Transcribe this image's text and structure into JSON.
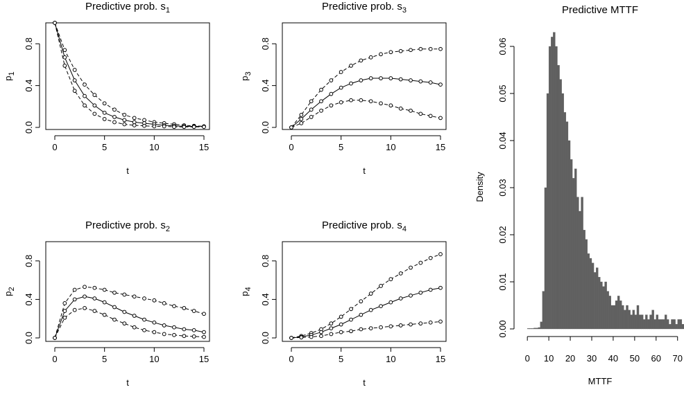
{
  "chart_data": [
    {
      "type": "line",
      "title": "Predictive prob. s",
      "title_subscript": "1",
      "xlabel": "t",
      "ylabel": "p",
      "ylabel_subscript": "1",
      "xlim": [
        0,
        15
      ],
      "ylim": [
        0,
        1
      ],
      "x_ticks": [
        "0",
        "5",
        "10",
        "15"
      ],
      "y_ticks": [
        "0.0",
        "0.4",
        "0.8"
      ],
      "x": [
        0,
        1,
        2,
        3,
        4,
        5,
        6,
        7,
        8,
        9,
        10,
        11,
        12,
        13,
        14,
        15
      ],
      "series": [
        {
          "style": "dashed",
          "values": [
            1.0,
            0.74,
            0.55,
            0.41,
            0.31,
            0.23,
            0.17,
            0.12,
            0.09,
            0.07,
            0.05,
            0.04,
            0.03,
            0.02,
            0.015,
            0.01
          ]
        },
        {
          "style": "solid",
          "values": [
            1.0,
            0.67,
            0.45,
            0.3,
            0.21,
            0.14,
            0.1,
            0.07,
            0.05,
            0.04,
            0.03,
            0.02,
            0.015,
            0.01,
            0.01,
            0.01
          ]
        },
        {
          "style": "dashed",
          "values": [
            1.0,
            0.59,
            0.35,
            0.21,
            0.13,
            0.08,
            0.05,
            0.03,
            0.02,
            0.015,
            0.01,
            0.01,
            0.005,
            0.005,
            0.005,
            0.005
          ]
        }
      ]
    },
    {
      "type": "line",
      "title": "Predictive prob. s",
      "title_subscript": "3",
      "xlabel": "t",
      "ylabel": "p",
      "ylabel_subscript": "3",
      "xlim": [
        0,
        15
      ],
      "ylim": [
        0,
        1
      ],
      "x_ticks": [
        "0",
        "5",
        "10",
        "15"
      ],
      "y_ticks": [
        "0.0",
        "0.4",
        "0.8"
      ],
      "x": [
        0,
        1,
        2,
        3,
        4,
        5,
        6,
        7,
        8,
        9,
        10,
        11,
        12,
        13,
        14,
        15
      ],
      "series": [
        {
          "style": "dashed",
          "values": [
            0.0,
            0.12,
            0.25,
            0.36,
            0.45,
            0.53,
            0.59,
            0.64,
            0.67,
            0.7,
            0.72,
            0.73,
            0.74,
            0.75,
            0.75,
            0.75
          ]
        },
        {
          "style": "solid",
          "values": [
            0.0,
            0.08,
            0.17,
            0.25,
            0.32,
            0.38,
            0.42,
            0.45,
            0.47,
            0.47,
            0.47,
            0.46,
            0.45,
            0.44,
            0.43,
            0.41
          ]
        },
        {
          "style": "dashed",
          "values": [
            0.0,
            0.04,
            0.1,
            0.16,
            0.21,
            0.24,
            0.26,
            0.26,
            0.25,
            0.23,
            0.21,
            0.18,
            0.16,
            0.13,
            0.11,
            0.09
          ]
        }
      ]
    },
    {
      "type": "line",
      "title": "Predictive prob. s",
      "title_subscript": "2",
      "xlabel": "t",
      "ylabel": "p",
      "ylabel_subscript": "2",
      "xlim": [
        0,
        15
      ],
      "ylim": [
        0,
        1
      ],
      "x_ticks": [
        "0",
        "5",
        "10",
        "15"
      ],
      "y_ticks": [
        "0.0",
        "0.4",
        "0.8"
      ],
      "x": [
        0,
        1,
        2,
        3,
        4,
        5,
        6,
        7,
        8,
        9,
        10,
        11,
        12,
        13,
        14,
        15
      ],
      "series": [
        {
          "style": "dashed",
          "values": [
            0.0,
            0.36,
            0.5,
            0.53,
            0.52,
            0.5,
            0.47,
            0.45,
            0.43,
            0.41,
            0.39,
            0.36,
            0.33,
            0.31,
            0.28,
            0.25
          ]
        },
        {
          "style": "solid",
          "values": [
            0.0,
            0.28,
            0.4,
            0.43,
            0.41,
            0.37,
            0.32,
            0.27,
            0.23,
            0.19,
            0.16,
            0.13,
            0.11,
            0.09,
            0.08,
            0.06
          ]
        },
        {
          "style": "dashed",
          "values": [
            0.0,
            0.21,
            0.29,
            0.31,
            0.28,
            0.24,
            0.19,
            0.15,
            0.11,
            0.08,
            0.06,
            0.04,
            0.03,
            0.02,
            0.015,
            0.01
          ]
        }
      ]
    },
    {
      "type": "line",
      "title": "Predictive prob. s",
      "title_subscript": "4",
      "xlabel": "t",
      "ylabel": "p",
      "ylabel_subscript": "4",
      "xlim": [
        0,
        15
      ],
      "ylim": [
        0,
        1
      ],
      "x_ticks": [
        "0",
        "5",
        "10",
        "15"
      ],
      "y_ticks": [
        "0.0",
        "0.4",
        "0.8"
      ],
      "x": [
        0,
        1,
        2,
        3,
        4,
        5,
        6,
        7,
        8,
        9,
        10,
        11,
        12,
        13,
        14,
        15
      ],
      "series": [
        {
          "style": "dashed",
          "values": [
            0.0,
            0.02,
            0.05,
            0.09,
            0.15,
            0.22,
            0.3,
            0.38,
            0.46,
            0.54,
            0.61,
            0.67,
            0.73,
            0.78,
            0.83,
            0.87
          ]
        },
        {
          "style": "solid",
          "values": [
            0.0,
            0.01,
            0.03,
            0.06,
            0.1,
            0.14,
            0.19,
            0.24,
            0.29,
            0.33,
            0.37,
            0.41,
            0.44,
            0.47,
            0.5,
            0.52
          ]
        },
        {
          "style": "dashed",
          "values": [
            0.0,
            0.005,
            0.01,
            0.02,
            0.04,
            0.06,
            0.07,
            0.09,
            0.1,
            0.11,
            0.12,
            0.13,
            0.14,
            0.15,
            0.16,
            0.17
          ]
        }
      ]
    },
    {
      "type": "bar",
      "title": "Predictive MTTF",
      "xlabel": "MTTF",
      "ylabel": "Density",
      "xlim": [
        -2,
        73
      ],
      "ylim": [
        0,
        0.065
      ],
      "x_ticks": [
        "0",
        "10",
        "20",
        "30",
        "40",
        "50",
        "60",
        "70"
      ],
      "y_ticks": [
        "0.00",
        "0.01",
        "0.02",
        "0.03",
        "0.04",
        "0.05",
        "0.06"
      ],
      "bin_start": 0,
      "bin_width": 1,
      "values": [
        0.0001,
        0.0001,
        0.0001,
        0.0002,
        0.0002,
        0.0003,
        0.0015,
        0.008,
        0.03,
        0.05,
        0.06,
        0.062,
        0.063,
        0.06,
        0.056,
        0.053,
        0.05,
        0.046,
        0.044,
        0.04,
        0.036,
        0.032,
        0.034,
        0.028,
        0.025,
        0.028,
        0.021,
        0.019,
        0.016,
        0.015,
        0.014,
        0.012,
        0.013,
        0.011,
        0.01,
        0.009,
        0.01,
        0.008,
        0.007,
        0.005,
        0.005,
        0.006,
        0.007,
        0.006,
        0.005,
        0.004,
        0.005,
        0.004,
        0.003,
        0.004,
        0.003,
        0.005,
        0.003,
        0.003,
        0.002,
        0.003,
        0.002,
        0.003,
        0.004,
        0.002,
        0.003,
        0.002,
        0.002,
        0.002,
        0.003,
        0.002,
        0.001,
        0.002,
        0.002,
        0.001,
        0.002,
        0.002,
        0.001
      ]
    }
  ]
}
